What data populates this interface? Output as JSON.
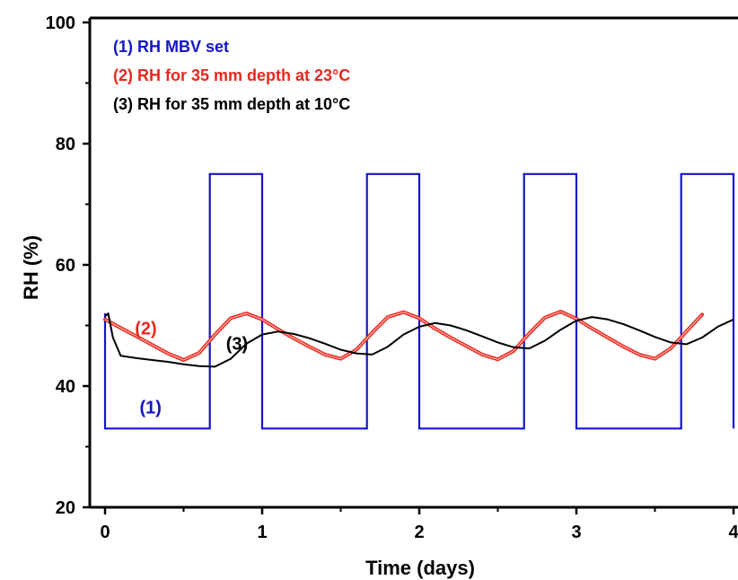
{
  "chart_data": {
    "type": "line",
    "xlabel": "Time (days)",
    "ylabel": "RH (%)",
    "xlim": [
      0,
      4
    ],
    "ylim": [
      20,
      100
    ],
    "x_ticks": [
      0,
      1,
      2,
      3,
      4
    ],
    "x_tick_labels": [
      "0",
      "1",
      "2",
      "3",
      "4"
    ],
    "y_ticks": [
      20,
      40,
      60,
      80,
      100
    ],
    "y_tick_labels": [
      "20",
      "40",
      "60",
      "80",
      "100"
    ],
    "grid": false,
    "legend_position": "top-left",
    "legend": [
      {
        "label": "(1) RH MBV set",
        "color": "#1414c8"
      },
      {
        "label": "(2) RH for 35 mm depth at 23°C",
        "color": "#e8281e"
      },
      {
        "label": "(3) RH for 35 mm depth at 10°C",
        "color": "#000000"
      }
    ],
    "annotations": [
      {
        "text": "(1)",
        "x": 0.29,
        "y": 35.5,
        "color": "#1414c8"
      },
      {
        "text": "(2)",
        "x": 0.26,
        "y": 48.5,
        "color": "#e8281e"
      },
      {
        "text": "(3)",
        "x": 0.84,
        "y": 46.0,
        "color": "#000000"
      }
    ],
    "series": [
      {
        "name": "(1) RH MBV set",
        "color": "#1414c8",
        "x": [
          0,
          0,
          0.667,
          0.667,
          1.0,
          1.0,
          1.667,
          1.667,
          2.0,
          2.0,
          2.667,
          2.667,
          3.0,
          3.0,
          3.667,
          3.667,
          4.0,
          4.0
        ],
        "y": [
          52,
          33,
          33,
          75,
          75,
          33,
          33,
          75,
          75,
          33,
          33,
          75,
          75,
          33,
          33,
          75,
          75,
          33
        ]
      },
      {
        "name": "(2) RH for 35 mm depth at 23°C",
        "color": "#e8281e",
        "x": [
          0,
          0.1,
          0.2,
          0.3,
          0.4,
          0.5,
          0.6,
          0.7,
          0.8,
          0.9,
          1.0,
          1.1,
          1.2,
          1.3,
          1.4,
          1.5,
          1.6,
          1.7,
          1.8,
          1.9,
          2.0,
          2.1,
          2.2,
          2.3,
          2.4,
          2.5,
          2.6,
          2.7,
          2.8,
          2.9,
          3.0,
          3.1,
          3.2,
          3.3,
          3.4,
          3.5,
          3.6,
          3.7,
          3.8
        ],
        "y": [
          51.0,
          49.6,
          48.2,
          46.8,
          45.4,
          44.3,
          45.5,
          48.5,
          51.2,
          52.0,
          51.0,
          49.4,
          47.9,
          46.5,
          45.2,
          44.5,
          46.0,
          48.8,
          51.4,
          52.2,
          51.2,
          49.5,
          48.0,
          46.6,
          45.2,
          44.4,
          45.8,
          48.7,
          51.3,
          52.3,
          51.1,
          49.5,
          48.0,
          46.5,
          45.2,
          44.5,
          46.2,
          49.0,
          51.8
        ]
      },
      {
        "name": "(3) RH for 35 mm depth at 10°C",
        "color": "#000000",
        "x": [
          0,
          0.02,
          0.05,
          0.1,
          0.2,
          0.3,
          0.4,
          0.5,
          0.6,
          0.7,
          0.8,
          0.9,
          1.0,
          1.1,
          1.2,
          1.3,
          1.4,
          1.5,
          1.6,
          1.7,
          1.8,
          1.9,
          2.0,
          2.1,
          2.2,
          2.3,
          2.4,
          2.5,
          2.6,
          2.7,
          2.8,
          2.9,
          3.0,
          3.1,
          3.2,
          3.3,
          3.4,
          3.5,
          3.6,
          3.7,
          3.8,
          3.9,
          4.0
        ],
        "y": [
          51.5,
          52.0,
          48.0,
          45.0,
          44.6,
          44.3,
          44.0,
          43.6,
          43.3,
          43.2,
          44.5,
          47.0,
          48.5,
          49.0,
          48.6,
          47.9,
          47.0,
          46.0,
          45.4,
          45.2,
          46.5,
          48.5,
          49.8,
          50.4,
          50.0,
          49.2,
          48.2,
          47.2,
          46.4,
          46.2,
          47.5,
          49.3,
          50.8,
          51.4,
          51.0,
          50.2,
          49.2,
          48.1,
          47.2,
          46.9,
          48.0,
          49.8,
          51.0
        ]
      }
    ]
  }
}
